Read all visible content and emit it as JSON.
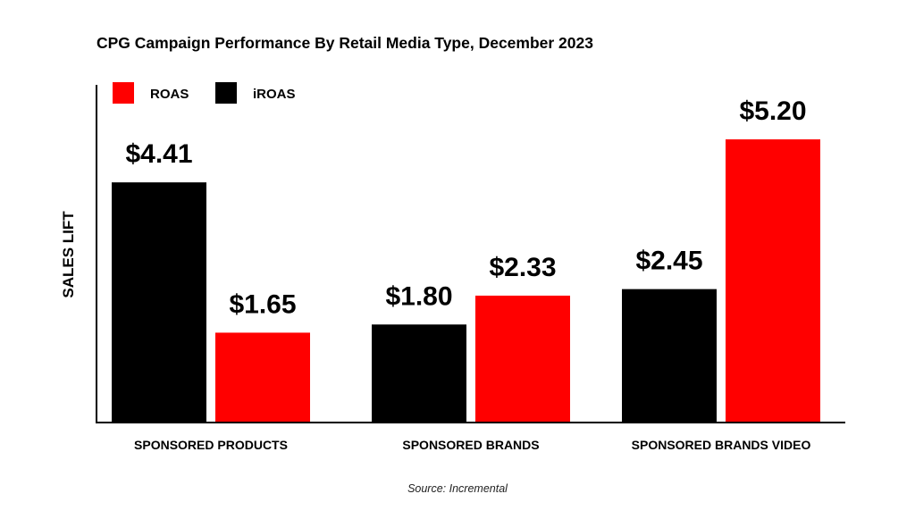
{
  "chart_data": {
    "type": "bar",
    "title": "CPG Campaign Performance By Retail Media Type, December 2023",
    "xlabel": "",
    "ylabel": "SALES LIFT",
    "categories": [
      "SPONSORED PRODUCTS",
      "SPONSORED BRANDS",
      "SPONSORED BRANDS VIDEO"
    ],
    "series": [
      {
        "name": "iROAS",
        "color": "#000000",
        "values": [
          4.41,
          1.8,
          2.45
        ],
        "labels": [
          "$4.41",
          "$1.80",
          "$2.45"
        ]
      },
      {
        "name": "ROAS",
        "color": "#ff0000",
        "values": [
          1.65,
          2.33,
          5.2
        ],
        "labels": [
          "$1.65",
          "$2.33",
          "$5.20"
        ]
      }
    ],
    "legend": {
      "placement": "top-left",
      "order": [
        "ROAS",
        "iROAS"
      ]
    },
    "ylim": [
      0,
      6
    ],
    "grid": false,
    "source": "Source: Incremental"
  }
}
